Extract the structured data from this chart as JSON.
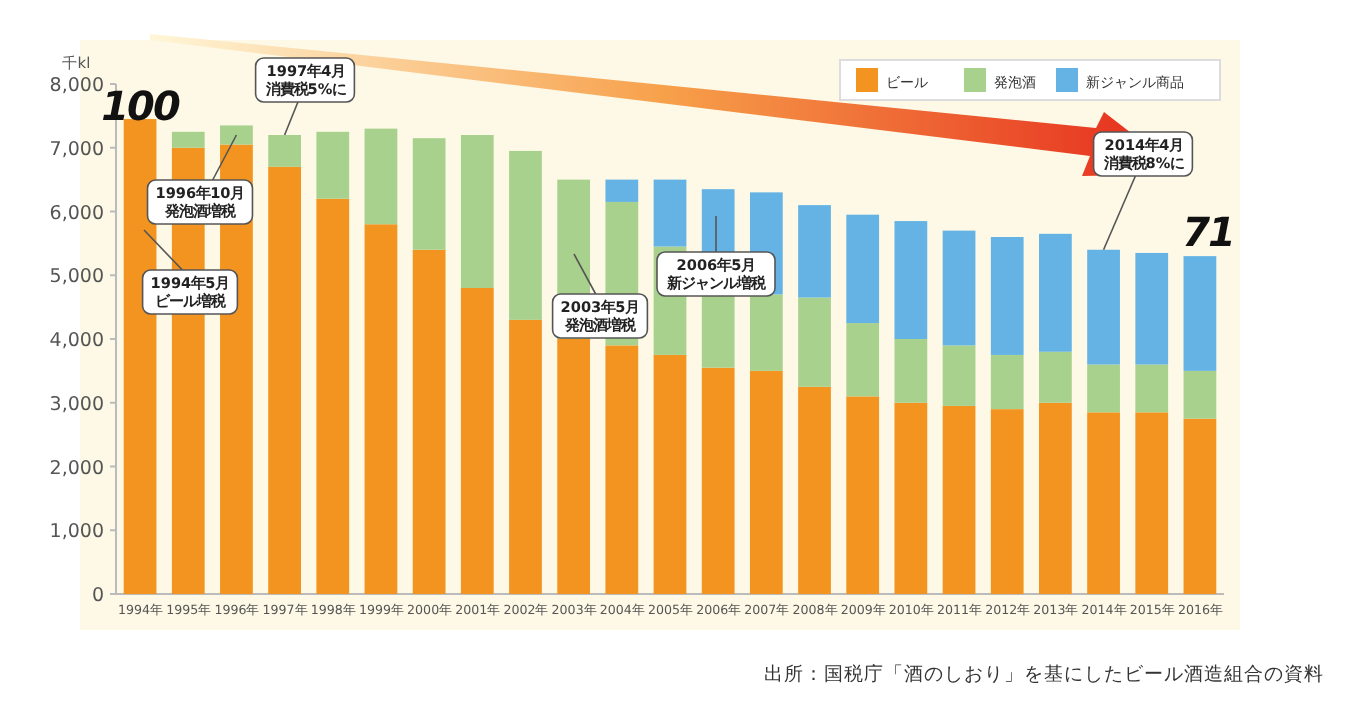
{
  "chart_data": {
    "type": "bar",
    "stacked": true,
    "ylabel": "千kl",
    "legend": "top right",
    "ylim": [
      0,
      8000
    ],
    "yticks": [
      0,
      {
        "value": 1000,
        "label": "1,000"
      },
      {
        "value": 2000,
        "label": "2,000"
      },
      {
        "value": 3000,
        "label": "3,000"
      },
      {
        "value": 4000,
        "label": "4,000"
      },
      {
        "value": 5000,
        "label": "5,000"
      },
      {
        "value": 6000,
        "label": "6,000"
      },
      {
        "value": 7000,
        "label": "7,000"
      },
      {
        "value": 8000,
        "label": "8,000"
      }
    ],
    "categories": [
      "1994年",
      "1995年",
      "1996年",
      "1997年",
      "1998年",
      "1999年",
      "2000年",
      "2001年",
      "2002年",
      "2003年",
      "2004年",
      "2005年",
      "2006年",
      "2007年",
      "2008年",
      "2009年",
      "2010年",
      "2011年",
      "2012年",
      "2013年",
      "2014年",
      "2015年",
      "2016年"
    ],
    "series": [
      {
        "name": "ビール",
        "color": "#f39420",
        "values": [
          7450,
          7000,
          7050,
          6700,
          6200,
          5800,
          5400,
          4800,
          4300,
          4000,
          3900,
          3750,
          3550,
          3500,
          3250,
          3100,
          3000,
          2950,
          2900,
          3000,
          2850,
          2850,
          2750
        ]
      },
      {
        "name": "発泡酒",
        "color": "#a9d18e",
        "values": [
          null,
          250,
          300,
          500,
          1050,
          1500,
          1750,
          2400,
          2650,
          2500,
          2250,
          1700,
          1150,
          1200,
          1400,
          1150,
          1000,
          950,
          850,
          800,
          750,
          750,
          750
        ]
      },
      {
        "name": "新ジャンル商品",
        "color": "#64b3e4",
        "values": [
          null,
          null,
          null,
          null,
          null,
          null,
          null,
          null,
          null,
          null,
          350,
          1050,
          1650,
          1600,
          1450,
          1700,
          1850,
          1800,
          1850,
          1850,
          1800,
          1750,
          1800
        ]
      }
    ],
    "annotations": [
      "100",
      "71",
      {
        "text": "1997年4月",
        "x": "1997年",
        "y": 7200
      },
      "消費税5%に",
      {
        "text": "1996年10月",
        "x": "1996年",
        "y": 7200
      },
      "発泡酒増税",
      "1994年5月",
      "ビール増税",
      "2003年5月",
      "発泡酒増税",
      "2006年5月",
      "新ジャンル増税",
      {
        "text": "2014年4月",
        "x": "2014年",
        "y": 5400
      },
      "消費税8%に",
      "出所：国税庁「酒のしおり」を基にしたビール酒造組合の資料"
    ]
  }
}
